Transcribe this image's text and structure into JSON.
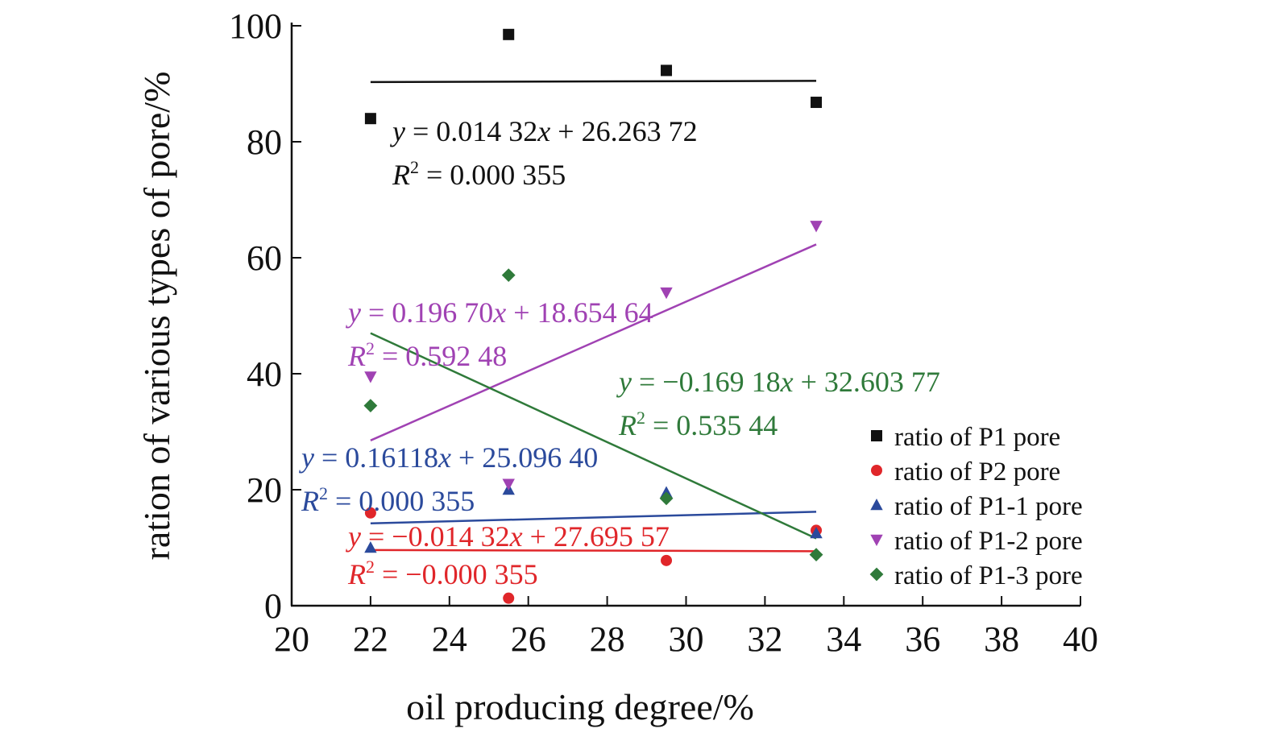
{
  "chart_data": {
    "type": "scatter",
    "xlabel": "oil producing degree/%",
    "ylabel": "ration of various types of pore/%",
    "xlim": [
      20,
      40
    ],
    "ylim": [
      0,
      100
    ],
    "xticks": [
      "20",
      "22",
      "24",
      "26",
      "28",
      "30",
      "32",
      "34",
      "36",
      "38",
      "40"
    ],
    "yticks": [
      "0",
      "20",
      "40",
      "60",
      "80",
      "100"
    ],
    "legend_position": "right",
    "x": [
      22.0,
      25.5,
      29.5,
      33.3
    ],
    "series": [
      {
        "name": "ratio of P1 pore",
        "color": "#111111",
        "marker": "square",
        "values": [
          84.0,
          98.5,
          92.3,
          86.8
        ],
        "trend": [
          90.3,
          90.5
        ],
        "equation": {
          "y": "y",
          "eq_mid": " = 0.014 32",
          "x": "x",
          "eq_end": " + 26.263 72"
        },
        "r2": {
          "r": "R",
          "sup": "2",
          "text": " = 0.000 355"
        }
      },
      {
        "name": "ratio of P2 pore",
        "color": "#e0262a",
        "marker": "circle",
        "values": [
          16.0,
          1.3,
          7.8,
          13.0
        ],
        "trend": [
          9.6,
          9.4
        ],
        "equation": {
          "y": "y",
          "eq_mid": " = −0.014 32",
          "x": "x",
          "eq_end": " + 27.695 57"
        },
        "r2": {
          "r": "R",
          "sup": "2",
          "text": " = −0.000 355"
        }
      },
      {
        "name": "ratio of P1-1 pore",
        "color": "#2b4a9c",
        "marker": "triangle-up",
        "values": [
          10.0,
          20.0,
          19.5,
          12.5
        ],
        "trend": [
          14.2,
          16.2
        ],
        "equation": {
          "y": "y",
          "eq_mid": " = 0.16118",
          "x": "x",
          "eq_end": " + 25.096 40"
        },
        "r2": {
          "r": "R",
          "sup": "2",
          "text": " = 0.000 355"
        }
      },
      {
        "name": "ratio of P1-2 pore",
        "color": "#a042b3",
        "marker": "triangle-down",
        "values": [
          39.5,
          21.0,
          54.0,
          65.5
        ],
        "trend": [
          28.5,
          62.3
        ],
        "equation": {
          "y": "y",
          "eq_mid": " = 0.196 70",
          "x": "x",
          "eq_end": " + 18.654 64"
        },
        "r2": {
          "r": "R",
          "sup": "2",
          "text": " = 0.592 48"
        }
      },
      {
        "name": "ratio of P1-3 pore",
        "color": "#2f7a3a",
        "marker": "diamond",
        "values": [
          34.5,
          57.0,
          18.5,
          8.8
        ],
        "trend": [
          47.0,
          11.6
        ],
        "equation": {
          "y": "y",
          "eq_mid": " = −0.169 18",
          "x": "x",
          "eq_end": " + 32.603 77"
        },
        "r2": {
          "r": "R",
          "sup": "2",
          "text": " = 0.535 44"
        }
      }
    ]
  }
}
